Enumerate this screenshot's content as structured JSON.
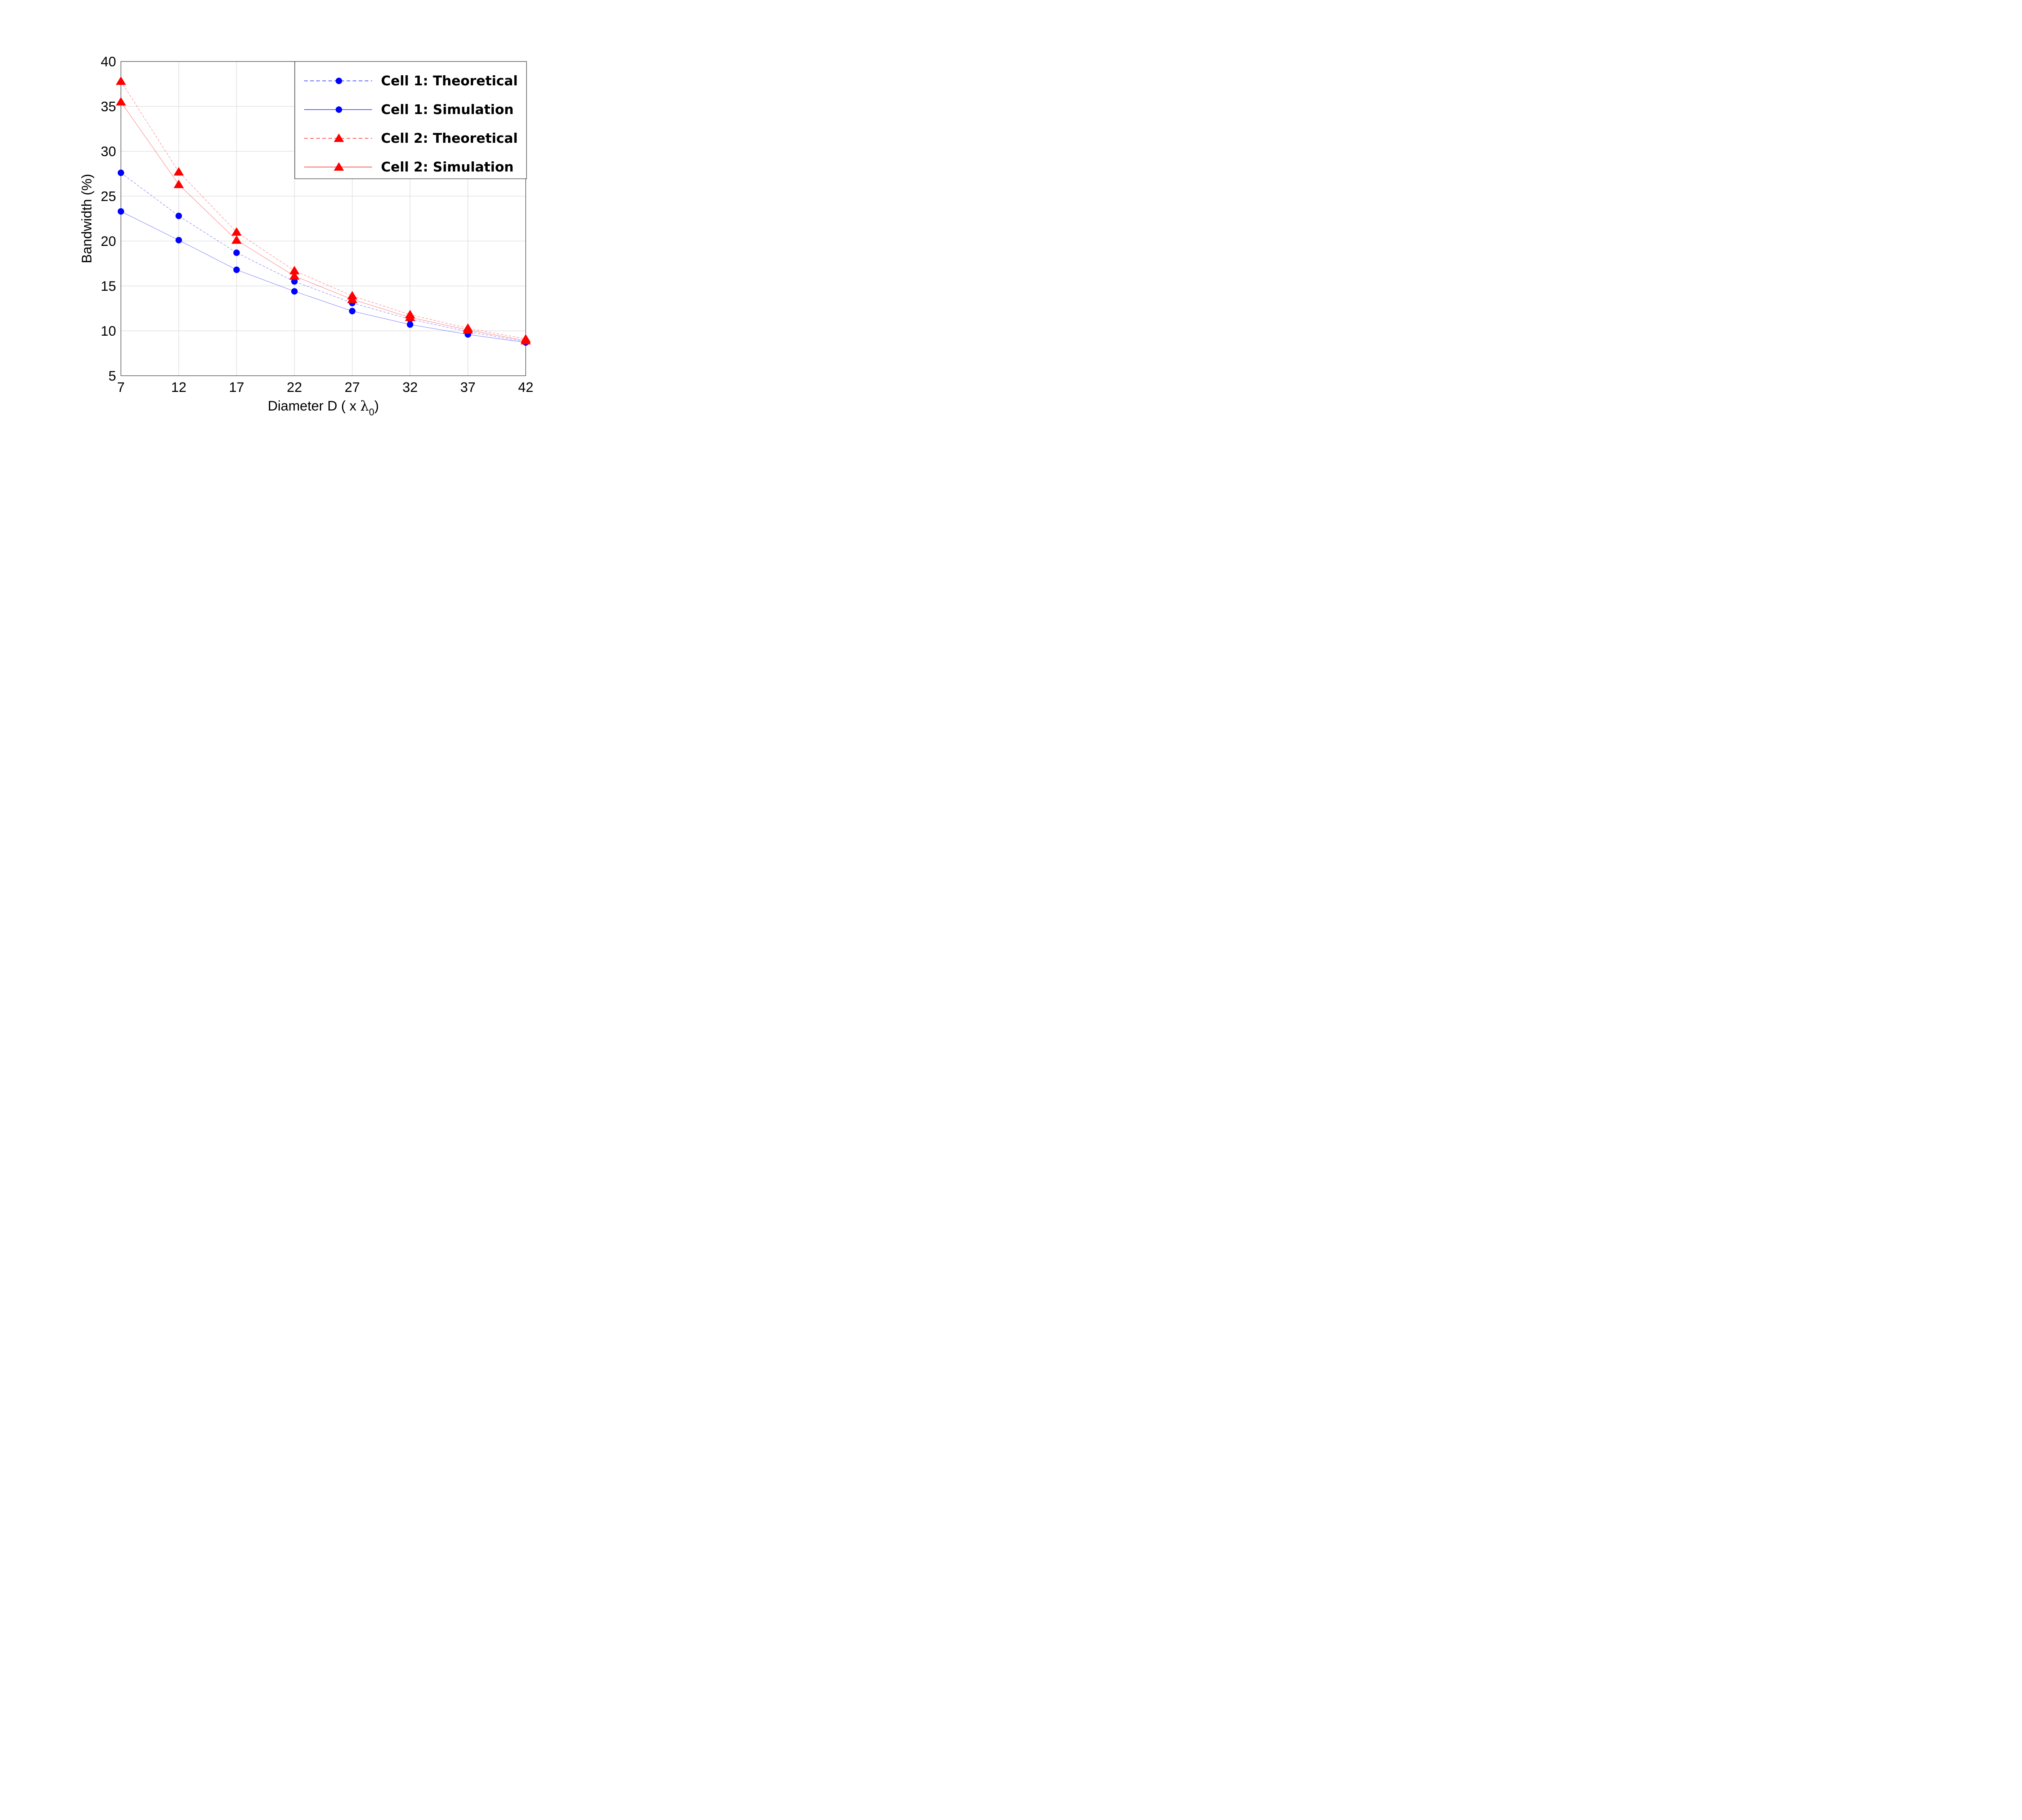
{
  "chart_data": {
    "type": "line",
    "title": "",
    "xlabel": "Diameter D ( x ",
    "xlabel_symbol": "λ",
    "xlabel_subscript": "0",
    "xlabel_end": ")",
    "ylabel": "Bandwidth (%)",
    "x": [
      7,
      12,
      17,
      22,
      27,
      32,
      37,
      42
    ],
    "x_ticks": [
      "7",
      "12",
      "17",
      "22",
      "27",
      "32",
      "37",
      "42"
    ],
    "y_ticks": [
      "5",
      "10",
      "15",
      "20",
      "25",
      "30",
      "35",
      "40"
    ],
    "xlim": [
      7,
      42
    ],
    "ylim": [
      5,
      40
    ],
    "grid": true,
    "legend_position": "top-right",
    "series": [
      {
        "name": "Cell 1: Theoretical",
        "values": [
          27.6,
          22.8,
          18.7,
          15.5,
          13.1,
          11.3,
          9.9,
          8.8
        ],
        "color": "#0000ff",
        "line": "dashed",
        "marker": "circle"
      },
      {
        "name": "Cell 1: Simulation",
        "values": [
          23.3,
          20.1,
          16.8,
          14.4,
          12.2,
          10.7,
          9.6,
          8.7
        ],
        "color": "#0000ff",
        "line": "solid",
        "marker": "circle"
      },
      {
        "name": "Cell 2: Theoretical",
        "values": [
          37.8,
          27.7,
          21.0,
          16.7,
          13.9,
          11.8,
          10.3,
          9.1
        ],
        "color": "#ff0000",
        "line": "dashed",
        "marker": "triangle"
      },
      {
        "name": "Cell 2: Simulation",
        "values": [
          35.5,
          26.3,
          20.1,
          16.1,
          13.5,
          11.5,
          10.1,
          8.9
        ],
        "color": "#ff0000",
        "line": "solid",
        "marker": "triangle"
      }
    ]
  }
}
